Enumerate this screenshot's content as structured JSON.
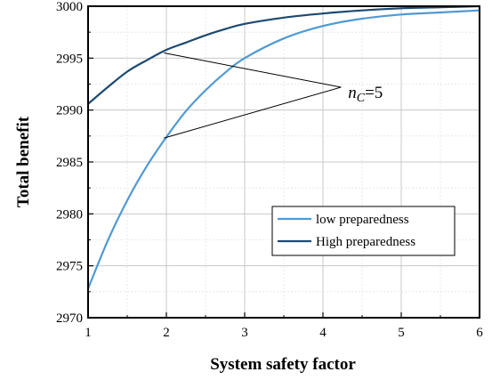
{
  "chart_data": {
    "type": "line",
    "title": "",
    "xlabel": "System safety factor",
    "ylabel": "Total benefit",
    "xlim": [
      1,
      6
    ],
    "ylim": [
      2970,
      3000
    ],
    "xticks": [
      1,
      2,
      3,
      4,
      5,
      6
    ],
    "yticks": [
      2970,
      2975,
      2980,
      2985,
      2990,
      2995,
      3000
    ],
    "grid": true,
    "legend_position": "lower-right",
    "series": [
      {
        "name": "low preparedness",
        "color": "#4f9ad2",
        "x": [
          1.0,
          1.25,
          1.5,
          1.75,
          2.0,
          2.25,
          2.5,
          2.75,
          3.0,
          3.5,
          4.0,
          4.5,
          5.0,
          5.5,
          6.0
        ],
        "y": [
          2972.8,
          2977.4,
          2981.3,
          2984.6,
          2987.4,
          2989.9,
          2991.9,
          2993.6,
          2995.0,
          2996.9,
          2998.1,
          2998.8,
          2999.2,
          2999.4,
          2999.6
        ]
      },
      {
        "name": "High preparedness",
        "color": "#1c4a72",
        "x": [
          1.0,
          1.25,
          1.5,
          1.75,
          2.0,
          2.25,
          2.5,
          2.75,
          3.0,
          3.5,
          4.0,
          4.5,
          5.0,
          5.5,
          6.0
        ],
        "y": [
          2990.6,
          2992.2,
          2993.7,
          2994.8,
          2995.8,
          2996.5,
          2997.2,
          2997.8,
          2998.3,
          2998.9,
          2999.3,
          2999.6,
          2999.8,
          2999.9,
          3000.0
        ]
      }
    ],
    "annotation": {
      "text_main": "n",
      "text_sub": "C",
      "text_rest": "=5",
      "arrow_targets": [
        {
          "x": 1.97,
          "y": 2995.5
        },
        {
          "x": 1.97,
          "y": 2987.3
        }
      ],
      "arrow_source": {
        "x": 4.23,
        "y": 2992.2
      }
    }
  }
}
